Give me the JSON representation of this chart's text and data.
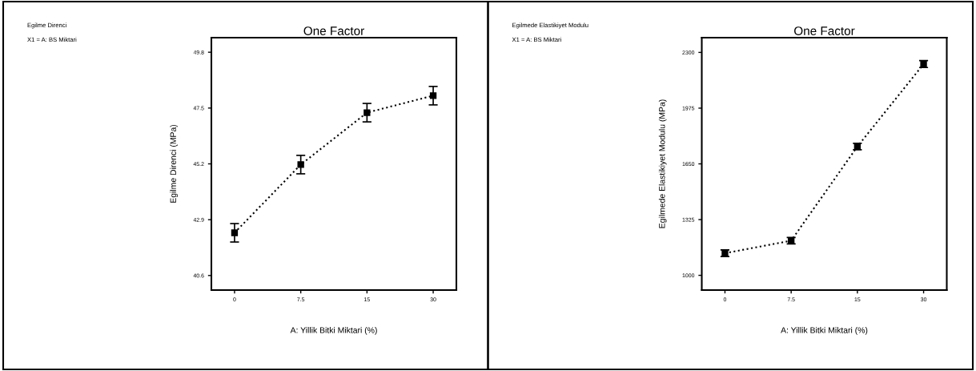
{
  "chart_data": [
    {
      "type": "line",
      "title": "One Factor",
      "xlabel": "A: Yillik Bitki Miktari (%)",
      "ylabel": "Egilme Direnci (MPa)",
      "annotations": [
        "Egilme Direnci",
        "X1 = A: BS Miktari"
      ],
      "categories": [
        "0",
        "7.5",
        "15",
        "30"
      ],
      "series": [
        {
          "color": "#000000",
          "values": [
            42.36,
            45.17,
            47.31,
            48.01
          ],
          "errors": [
            0.38,
            0.38,
            0.38,
            0.38
          ]
        }
      ],
      "ylim": [
        40.0,
        50.4
      ],
      "yticks": [
        40.6,
        42.9,
        45.2,
        47.5,
        49.8
      ],
      "marker": "square",
      "line_style": "dotted"
    },
    {
      "type": "line",
      "title": "One Factor",
      "xlabel": "A: Yillik Bitki Miktari (%)",
      "ylabel": "Egilmede Elastikiyet Modulu (MPa)",
      "annotations": [
        "Egilmede Elastikiyet Modulu",
        "X1 = A: BS Miktari"
      ],
      "categories": [
        "0",
        "7.5",
        "15",
        "30"
      ],
      "series": [
        {
          "color": "#000000",
          "values": [
            1129,
            1202,
            1751,
            2232
          ],
          "errors": [
            19,
            19,
            19,
            20
          ]
        }
      ],
      "ylim": [
        914,
        2386
      ],
      "yticks": [
        1000,
        1325,
        1650,
        1975,
        2300
      ],
      "marker": "square",
      "line_style": "dotted"
    }
  ]
}
